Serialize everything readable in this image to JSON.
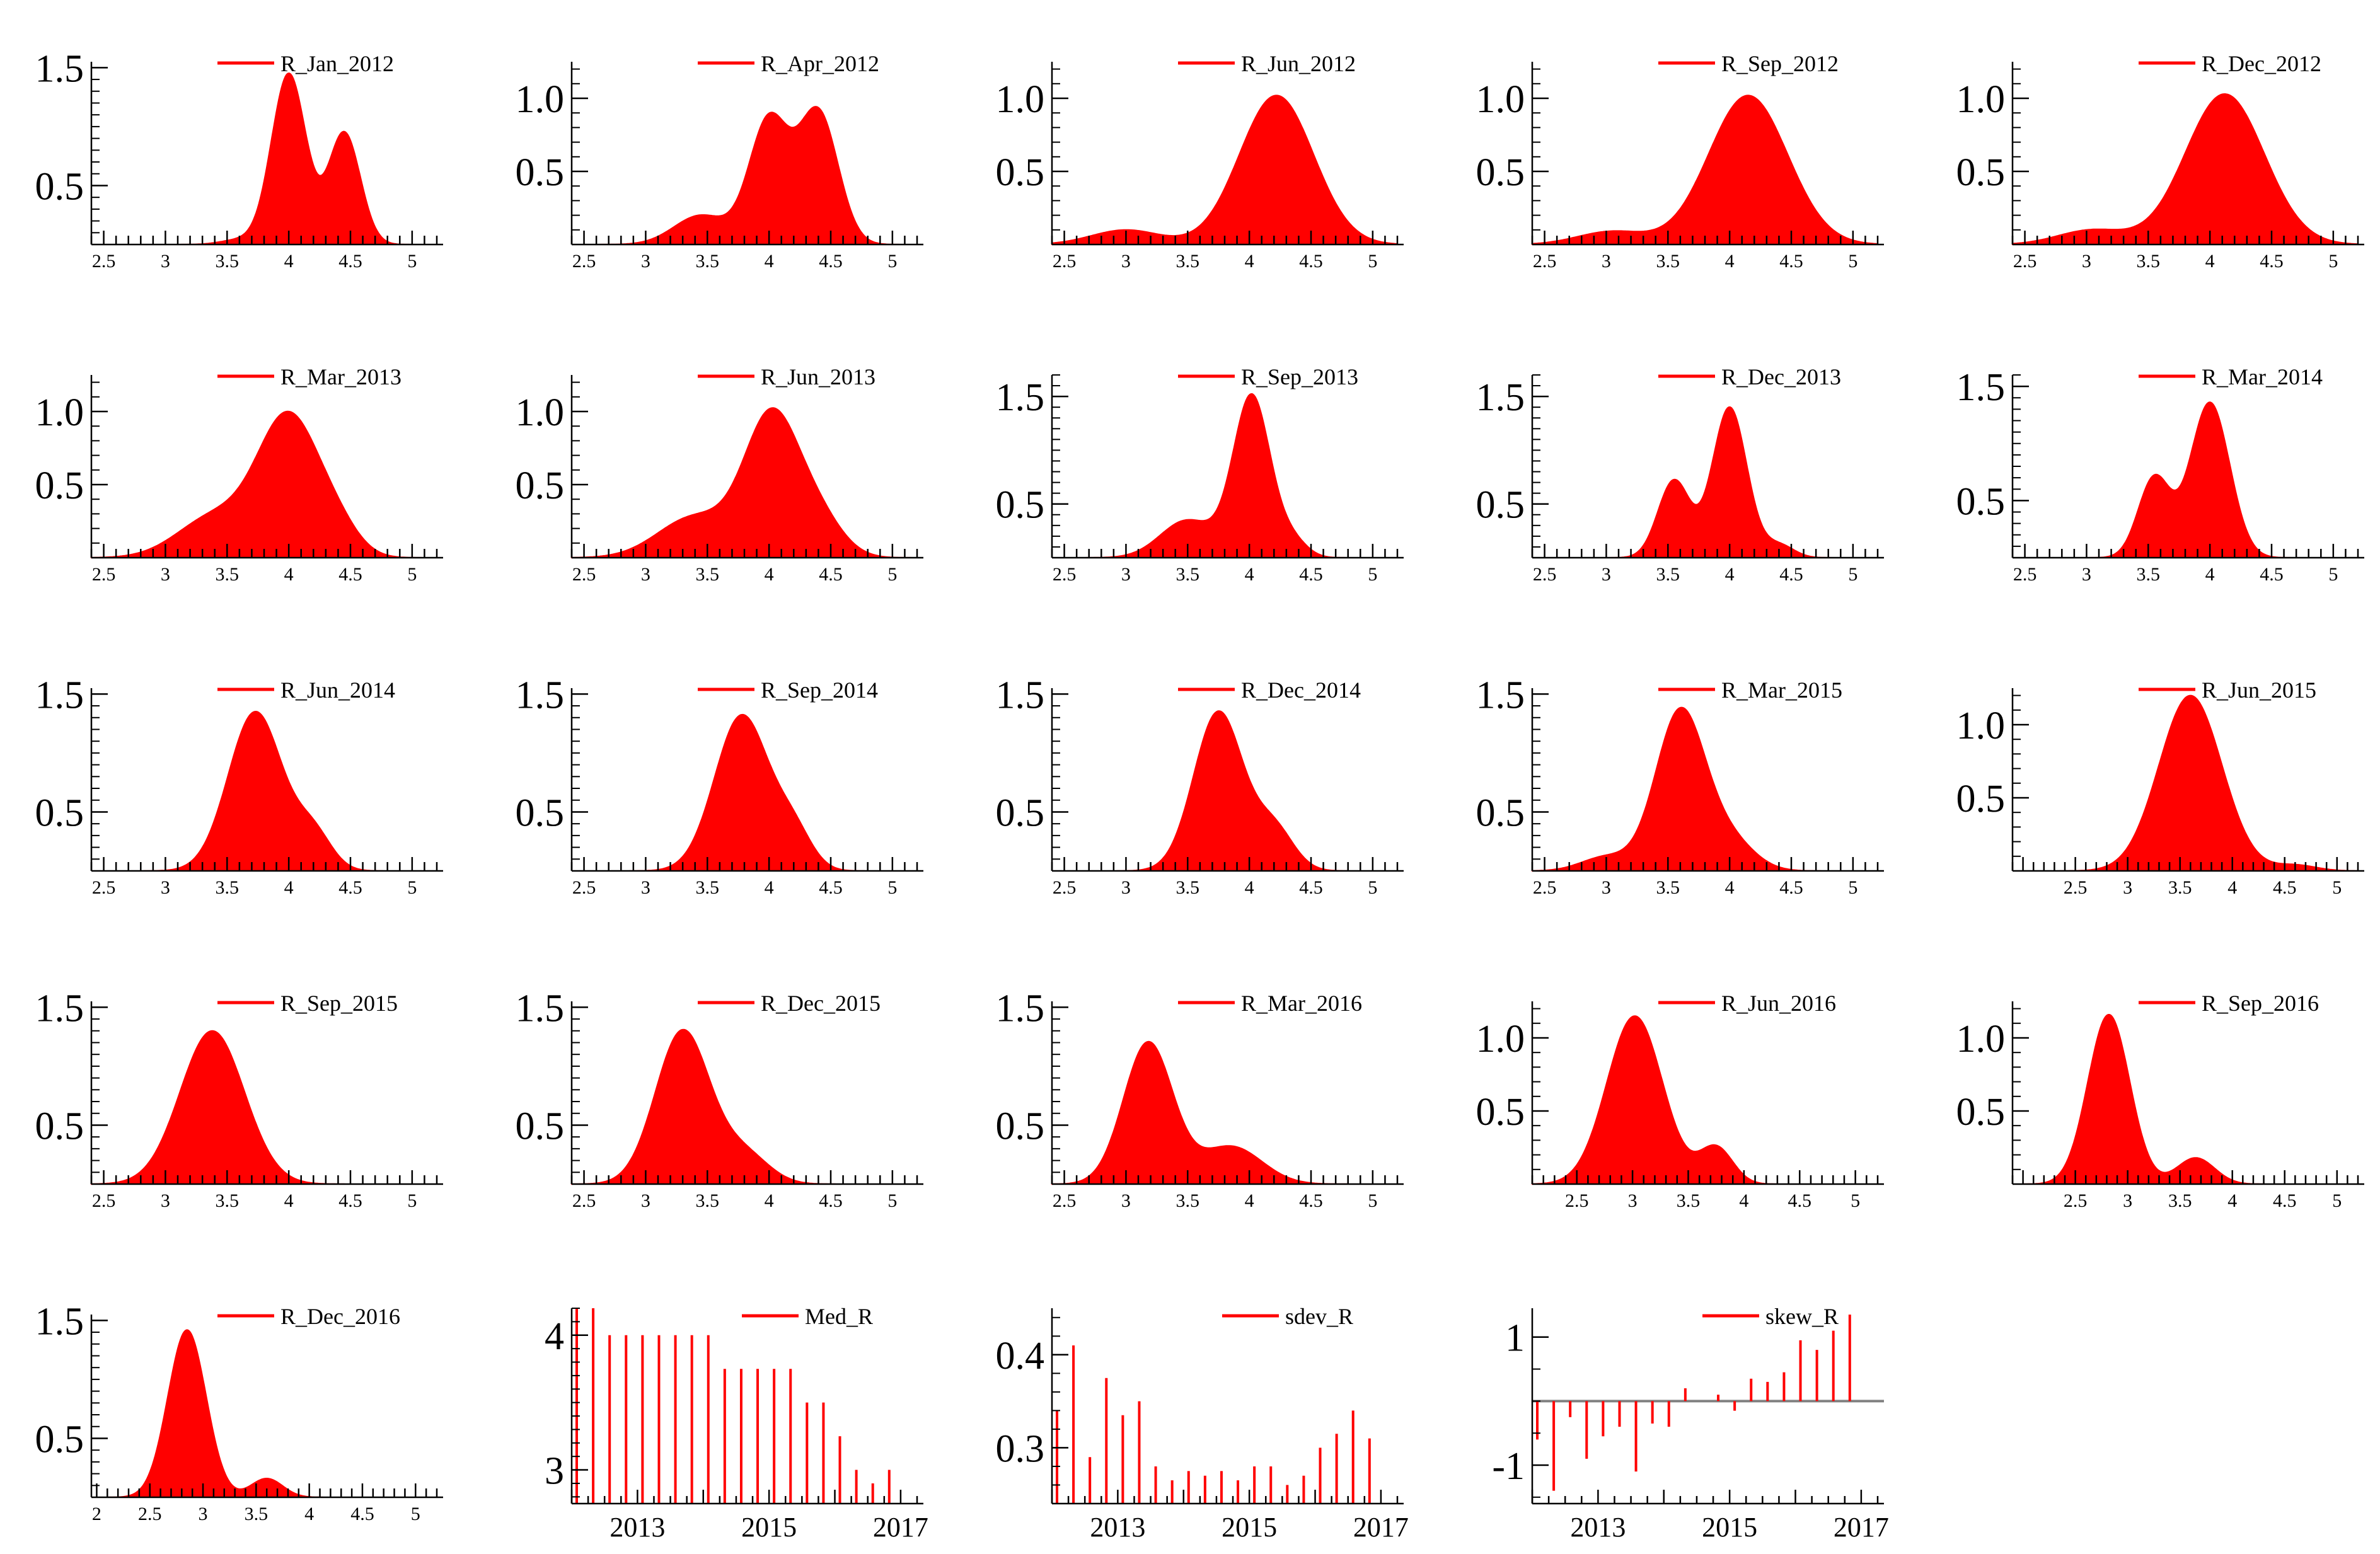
{
  "figure_caption": "Density plots of R by quarter and summary statistics",
  "colors": {
    "series": "#ff0000",
    "axis": "#000000",
    "zero_line": "#808080"
  },
  "chart_data": [
    {
      "id": "R_Jan_2012",
      "type": "area",
      "legend": "R_Jan_2012",
      "xlim": [
        2.4,
        5.2
      ],
      "ylim": [
        0,
        1.55
      ],
      "xticks": [
        2.5,
        3,
        3.5,
        4,
        4.5,
        5
      ],
      "yticks": [
        0.5,
        1.5
      ],
      "ytick_labels": [
        "0.5",
        "1.5"
      ],
      "components": [
        {
          "m": 4.0,
          "s": 0.14,
          "h": 1.45
        },
        {
          "m": 4.45,
          "s": 0.13,
          "h": 0.95
        },
        {
          "m": 3.6,
          "s": 0.15,
          "h": 0.04
        }
      ]
    },
    {
      "id": "R_Apr_2012",
      "type": "area",
      "legend": "R_Apr_2012",
      "xlim": [
        2.4,
        5.2
      ],
      "ylim": [
        0,
        1.25
      ],
      "xticks": [
        2.5,
        3,
        3.5,
        4,
        4.5,
        5
      ],
      "yticks": [
        0.5,
        1.0
      ],
      "ytick_labels": [
        "0.5",
        "1.0"
      ],
      "components": [
        {
          "m": 4.0,
          "s": 0.16,
          "h": 0.85
        },
        {
          "m": 4.4,
          "s": 0.16,
          "h": 0.9
        },
        {
          "m": 3.45,
          "s": 0.22,
          "h": 0.2
        }
      ]
    },
    {
      "id": "R_Jun_2012",
      "type": "area",
      "legend": "R_Jun_2012",
      "xlim": [
        2.4,
        5.2
      ],
      "ylim": [
        0,
        1.25
      ],
      "xticks": [
        2.5,
        3,
        3.5,
        4,
        4.5,
        5
      ],
      "yticks": [
        0.5,
        1.0
      ],
      "ytick_labels": [
        "0.5",
        "1.0"
      ],
      "components": [
        {
          "m": 4.22,
          "s": 0.3,
          "h": 1.02
        },
        {
          "m": 3.0,
          "s": 0.28,
          "h": 0.1
        }
      ]
    },
    {
      "id": "R_Sep_2012",
      "type": "area",
      "legend": "R_Sep_2012",
      "xlim": [
        2.4,
        5.2
      ],
      "ylim": [
        0,
        1.25
      ],
      "xticks": [
        2.5,
        3,
        3.5,
        4,
        4.5,
        5
      ],
      "yticks": [
        0.5,
        1.0
      ],
      "ytick_labels": [
        "0.5",
        "1.0"
      ],
      "components": [
        {
          "m": 4.15,
          "s": 0.32,
          "h": 1.02
        },
        {
          "m": 3.05,
          "s": 0.28,
          "h": 0.09
        }
      ]
    },
    {
      "id": "R_Dec_2012",
      "type": "area",
      "legend": "R_Dec_2012",
      "xlim": [
        2.4,
        5.2
      ],
      "ylim": [
        0,
        1.25
      ],
      "xticks": [
        2.5,
        3,
        3.5,
        4,
        4.5,
        5
      ],
      "yticks": [
        0.5,
        1.0
      ],
      "ytick_labels": [
        "0.5",
        "1.0"
      ],
      "components": [
        {
          "m": 4.12,
          "s": 0.32,
          "h": 1.03
        },
        {
          "m": 3.05,
          "s": 0.28,
          "h": 0.1
        }
      ]
    },
    {
      "id": "R_Mar_2013",
      "type": "area",
      "legend": "R_Mar_2013",
      "xlim": [
        2.4,
        5.2
      ],
      "ylim": [
        0,
        1.25
      ],
      "xticks": [
        2.5,
        3,
        3.5,
        4,
        4.5,
        5
      ],
      "yticks": [
        0.5,
        1.0
      ],
      "ytick_labels": [
        "0.5",
        "1.0"
      ],
      "components": [
        {
          "m": 4.0,
          "s": 0.25,
          "h": 0.95
        },
        {
          "m": 3.4,
          "s": 0.3,
          "h": 0.28
        },
        {
          "m": 4.4,
          "s": 0.18,
          "h": 0.15
        }
      ]
    },
    {
      "id": "R_Jun_2013",
      "type": "area",
      "legend": "R_Jun_2013",
      "xlim": [
        2.4,
        5.2
      ],
      "ylim": [
        0,
        1.25
      ],
      "xticks": [
        2.5,
        3,
        3.5,
        4,
        4.5,
        5
      ],
      "yticks": [
        0.5,
        1.0
      ],
      "ytick_labels": [
        "0.5",
        "1.0"
      ],
      "components": [
        {
          "m": 4.02,
          "s": 0.22,
          "h": 0.95
        },
        {
          "m": 3.4,
          "s": 0.3,
          "h": 0.28
        },
        {
          "m": 4.4,
          "s": 0.2,
          "h": 0.25
        }
      ]
    },
    {
      "id": "R_Sep_2013",
      "type": "area",
      "legend": "R_Sep_2013",
      "xlim": [
        2.4,
        5.2
      ],
      "ylim": [
        0,
        1.7
      ],
      "xticks": [
        2.5,
        3,
        3.5,
        4,
        4.5,
        5
      ],
      "yticks": [
        0.5,
        1.5
      ],
      "ytick_labels": [
        "0.5",
        "1.5"
      ],
      "components": [
        {
          "m": 4.02,
          "s": 0.15,
          "h": 1.5
        },
        {
          "m": 3.5,
          "s": 0.22,
          "h": 0.35
        },
        {
          "m": 4.35,
          "s": 0.12,
          "h": 0.15
        }
      ]
    },
    {
      "id": "R_Dec_2013",
      "type": "area",
      "legend": "R_Dec_2013",
      "xlim": [
        2.4,
        5.2
      ],
      "ylim": [
        0,
        1.7
      ],
      "xticks": [
        2.5,
        3,
        3.5,
        4,
        4.5,
        5
      ],
      "yticks": [
        0.5,
        1.5
      ],
      "ytick_labels": [
        "0.5",
        "1.5"
      ],
      "components": [
        {
          "m": 4.0,
          "s": 0.14,
          "h": 1.4
        },
        {
          "m": 3.55,
          "s": 0.13,
          "h": 0.72
        },
        {
          "m": 4.4,
          "s": 0.12,
          "h": 0.12
        }
      ]
    },
    {
      "id": "R_Mar_2014",
      "type": "area",
      "legend": "R_Mar_2014",
      "xlim": [
        2.4,
        5.2
      ],
      "ylim": [
        0,
        1.6
      ],
      "xticks": [
        2.5,
        3,
        3.5,
        4,
        4.5,
        5
      ],
      "yticks": [
        0.5,
        1.5
      ],
      "ytick_labels": [
        "0.5",
        "1.5"
      ],
      "components": [
        {
          "m": 4.0,
          "s": 0.16,
          "h": 1.36
        },
        {
          "m": 3.55,
          "s": 0.13,
          "h": 0.7
        }
      ]
    },
    {
      "id": "R_Jun_2014",
      "type": "area",
      "legend": "R_Jun_2014",
      "xlim": [
        2.4,
        5.2
      ],
      "ylim": [
        0,
        1.55
      ],
      "xticks": [
        2.5,
        3,
        3.5,
        4,
        4.5,
        5
      ],
      "yticks": [
        0.5,
        1.5
      ],
      "ytick_labels": [
        "0.5",
        "1.5"
      ],
      "components": [
        {
          "m": 3.73,
          "s": 0.22,
          "h": 1.35
        },
        {
          "m": 4.2,
          "s": 0.15,
          "h": 0.3
        }
      ]
    },
    {
      "id": "R_Sep_2014",
      "type": "area",
      "legend": "R_Sep_2014",
      "xlim": [
        2.4,
        5.2
      ],
      "ylim": [
        0,
        1.55
      ],
      "xticks": [
        2.5,
        3,
        3.5,
        4,
        4.5,
        5
      ],
      "yticks": [
        0.5,
        1.5
      ],
      "ytick_labels": [
        "0.5",
        "1.5"
      ],
      "components": [
        {
          "m": 3.78,
          "s": 0.22,
          "h": 1.32
        },
        {
          "m": 4.2,
          "s": 0.15,
          "h": 0.3
        }
      ]
    },
    {
      "id": "R_Dec_2014",
      "type": "area",
      "legend": "R_Dec_2014",
      "xlim": [
        2.4,
        5.2
      ],
      "ylim": [
        0,
        1.55
      ],
      "xticks": [
        2.5,
        3,
        3.5,
        4,
        4.5,
        5
      ],
      "yticks": [
        0.5,
        1.5
      ],
      "ytick_labels": [
        "0.5",
        "1.5"
      ],
      "components": [
        {
          "m": 3.75,
          "s": 0.2,
          "h": 1.35
        },
        {
          "m": 4.2,
          "s": 0.16,
          "h": 0.35
        }
      ]
    },
    {
      "id": "R_Mar_2015",
      "type": "area",
      "legend": "R_Mar_2015",
      "xlim": [
        2.4,
        5.2
      ],
      "ylim": [
        0,
        1.55
      ],
      "xticks": [
        2.5,
        3,
        3.5,
        4,
        4.5,
        5
      ],
      "yticks": [
        0.5,
        1.5
      ],
      "ytick_labels": [
        "0.5",
        "1.5"
      ],
      "components": [
        {
          "m": 3.6,
          "s": 0.2,
          "h": 1.35
        },
        {
          "m": 3.0,
          "s": 0.2,
          "h": 0.12
        },
        {
          "m": 4.0,
          "s": 0.2,
          "h": 0.25
        }
      ]
    },
    {
      "id": "R_Jun_2015",
      "type": "area",
      "legend": "R_Jun_2015",
      "xlim": [
        1.9,
        5.2
      ],
      "ylim": [
        0,
        1.25
      ],
      "xticks": [
        2.5,
        3,
        3.5,
        4,
        4.5,
        5
      ],
      "yticks": [
        0.5,
        1.0
      ],
      "ytick_labels": [
        "0.5",
        "1.0"
      ],
      "components": [
        {
          "m": 3.6,
          "s": 0.3,
          "h": 1.2
        },
        {
          "m": 4.6,
          "s": 0.2,
          "h": 0.04
        }
      ]
    },
    {
      "id": "R_Sep_2015",
      "type": "area",
      "legend": "R_Sep_2015",
      "xlim": [
        2.4,
        5.2
      ],
      "ylim": [
        0,
        1.55
      ],
      "xticks": [
        2.5,
        3,
        3.5,
        4,
        4.5,
        5
      ],
      "yticks": [
        0.5,
        1.5
      ],
      "ytick_labels": [
        "0.5",
        "1.5"
      ],
      "components": [
        {
          "m": 3.38,
          "s": 0.26,
          "h": 1.3
        }
      ]
    },
    {
      "id": "R_Dec_2015",
      "type": "area",
      "legend": "R_Dec_2015",
      "xlim": [
        2.4,
        5.2
      ],
      "ylim": [
        0,
        1.55
      ],
      "xticks": [
        2.5,
        3,
        3.5,
        4,
        4.5,
        5
      ],
      "yticks": [
        0.5,
        1.5
      ],
      "ytick_labels": [
        "0.5",
        "1.5"
      ],
      "components": [
        {
          "m": 3.3,
          "s": 0.22,
          "h": 1.3
        },
        {
          "m": 3.8,
          "s": 0.2,
          "h": 0.25
        }
      ]
    },
    {
      "id": "R_Mar_2016",
      "type": "area",
      "legend": "R_Mar_2016",
      "xlim": [
        2.4,
        5.2
      ],
      "ylim": [
        0,
        1.55
      ],
      "xticks": [
        2.5,
        3,
        3.5,
        4,
        4.5,
        5
      ],
      "yticks": [
        0.5,
        1.5
      ],
      "ytick_labels": [
        "0.5",
        "1.5"
      ],
      "components": [
        {
          "m": 3.18,
          "s": 0.2,
          "h": 1.2
        },
        {
          "m": 3.85,
          "s": 0.25,
          "h": 0.32
        }
      ]
    },
    {
      "id": "R_Jun_2016",
      "type": "area",
      "legend": "R_Jun_2016",
      "xlim": [
        2.1,
        5.2
      ],
      "ylim": [
        0,
        1.25
      ],
      "xticks": [
        2.5,
        3,
        3.5,
        4,
        4.5,
        5
      ],
      "yticks": [
        0.5,
        1.0
      ],
      "ytick_labels": [
        "0.5",
        "1.0"
      ],
      "components": [
        {
          "m": 3.02,
          "s": 0.25,
          "h": 1.15
        },
        {
          "m": 3.75,
          "s": 0.15,
          "h": 0.25
        }
      ]
    },
    {
      "id": "R_Sep_2016",
      "type": "area",
      "legend": "R_Sep_2016",
      "xlim": [
        1.9,
        5.2
      ],
      "ylim": [
        0,
        1.25
      ],
      "xticks": [
        2.5,
        3,
        3.5,
        4,
        4.5,
        5
      ],
      "yticks": [
        0.5,
        1.0
      ],
      "ytick_labels": [
        "0.5",
        "1.0"
      ],
      "components": [
        {
          "m": 2.82,
          "s": 0.2,
          "h": 1.16
        },
        {
          "m": 3.65,
          "s": 0.18,
          "h": 0.18
        }
      ]
    },
    {
      "id": "R_Dec_2016",
      "type": "area",
      "legend": "R_Dec_2016",
      "xlim": [
        1.95,
        5.2
      ],
      "ylim": [
        0,
        1.55
      ],
      "xticks": [
        2,
        2.5,
        3,
        3.5,
        4,
        4.5,
        5
      ],
      "yticks": [
        0.5,
        1.5
      ],
      "ytick_labels": [
        "0.5",
        "1.5"
      ],
      "components": [
        {
          "m": 2.85,
          "s": 0.18,
          "h": 1.42
        },
        {
          "m": 3.6,
          "s": 0.15,
          "h": 0.16
        }
      ]
    },
    {
      "id": "Med_R",
      "type": "bar",
      "legend": "Med_R",
      "xlim": [
        2012.0,
        2017.25
      ],
      "ylim": [
        2.75,
        4.2
      ],
      "baseline": 2.75,
      "yticks": [
        3,
        4
      ],
      "ytick_labels": [
        "3",
        "4"
      ],
      "xticks": [
        2013,
        2015,
        2017
      ],
      "xtick_labels": [
        "2013",
        "2015",
        "2017"
      ],
      "x": [
        2012.0,
        2012.25,
        2012.5,
        2012.75,
        2013.0,
        2013.25,
        2013.5,
        2013.75,
        2014.0,
        2014.25,
        2014.5,
        2014.75,
        2015.0,
        2015.25,
        2015.5,
        2015.75,
        2016.0,
        2016.25,
        2016.5,
        2016.75
      ],
      "values": [
        4.2,
        4.2,
        4.0,
        4.0,
        4.0,
        4.0,
        4.0,
        4.0,
        4.0,
        3.75,
        3.75,
        3.75,
        3.75,
        3.75,
        3.5,
        3.5,
        3.25,
        3.0,
        2.9,
        3.0
      ]
    },
    {
      "id": "sdev_R",
      "type": "bar",
      "legend": "sdev_R",
      "xlim": [
        2012.0,
        2017.25
      ],
      "ylim": [
        0.24,
        0.45
      ],
      "baseline": 0.24,
      "yticks": [
        0.3,
        0.4
      ],
      "ytick_labels": [
        "0.3",
        "0.4"
      ],
      "xticks": [
        2013,
        2015,
        2017
      ],
      "xtick_labels": [
        "2013",
        "2015",
        "2017"
      ],
      "x": [
        2012.0,
        2012.25,
        2012.5,
        2012.75,
        2013.0,
        2013.25,
        2013.5,
        2013.75,
        2014.0,
        2014.25,
        2014.5,
        2014.75,
        2015.0,
        2015.25,
        2015.5,
        2015.75,
        2016.0,
        2016.25,
        2016.5,
        2016.75
      ],
      "values": [
        0.34,
        0.41,
        0.29,
        0.375,
        0.335,
        0.35,
        0.28,
        0.265,
        0.275,
        0.27,
        0.275,
        0.265,
        0.28,
        0.28,
        0.26,
        0.27,
        0.3,
        0.315,
        0.34,
        0.31
      ]
    },
    {
      "id": "skew_R",
      "type": "bar",
      "legend": "skew_R",
      "xlim": [
        2012.0,
        2017.25
      ],
      "ylim": [
        -1.6,
        1.45
      ],
      "baseline": 0,
      "yticks": [
        -1,
        1
      ],
      "ytick_labels": [
        "-1",
        "1"
      ],
      "xticks": [
        2013,
        2015,
        2017
      ],
      "xtick_labels": [
        "2013",
        "2015",
        "2017"
      ],
      "x": [
        2012.0,
        2012.25,
        2012.5,
        2012.75,
        2013.0,
        2013.25,
        2013.5,
        2013.75,
        2014.0,
        2014.25,
        2014.5,
        2014.75,
        2015.0,
        2015.25,
        2015.5,
        2015.75,
        2016.0,
        2016.25,
        2016.5,
        2016.75
      ],
      "values": [
        -0.6,
        -1.4,
        -0.25,
        -0.9,
        -0.55,
        -0.4,
        -1.1,
        -0.35,
        -0.4,
        0.2,
        0.0,
        0.1,
        -0.15,
        0.35,
        0.3,
        0.45,
        0.95,
        0.8,
        1.1,
        1.35
      ]
    }
  ]
}
